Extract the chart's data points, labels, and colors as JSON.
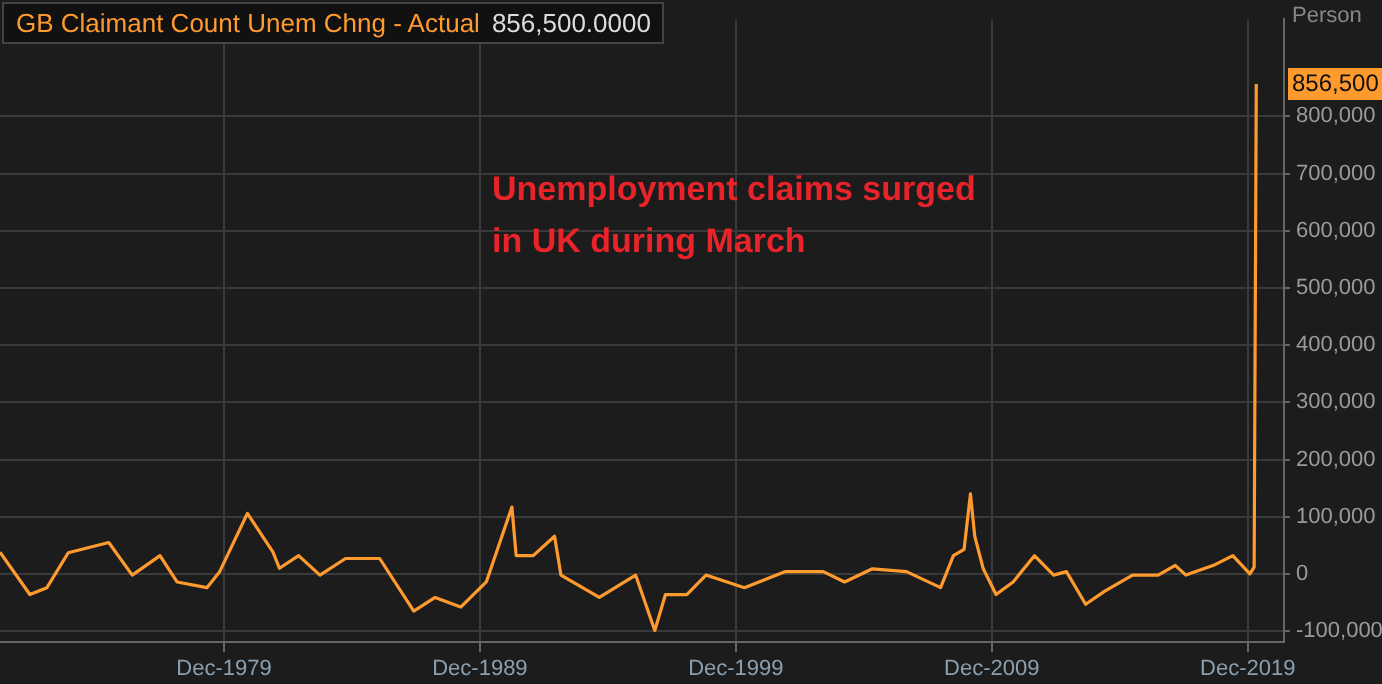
{
  "chart_data": {
    "type": "line",
    "title": "GB Claimant Count Unem Chng - Actual",
    "subtitle": "856,500.0000",
    "ylabel": "Person",
    "annotations": [
      "Unemployment claims surged in UK during March",
      {
        "text": "856,500",
        "x": "2020-04",
        "y": 856500
      }
    ],
    "x": [
      "1971-03",
      "1972-05",
      "1973-01",
      "1973-11",
      "1975-06",
      "1976-05",
      "1977-06",
      "1978-02",
      "1979-04",
      "1979-10",
      "1980-11",
      "1981-11",
      "1982-02",
      "1982-11",
      "1983-09",
      "1984-09",
      "1986-01",
      "1987-05",
      "1988-03",
      "1989-03",
      "1990-03",
      "1991-03",
      "1991-05",
      "1992-01",
      "1992-11",
      "1993-02",
      "1994-08",
      "1996-01",
      "1996-10",
      "1997-03",
      "1998-01",
      "1998-10",
      "2000-04",
      "2001-11",
      "2003-05",
      "2004-03",
      "2005-04",
      "2006-08",
      "2007-12",
      "2008-06",
      "2008-11",
      "2009-02",
      "2009-04",
      "2009-08",
      "2010-02",
      "2010-10",
      "2011-08",
      "2012-05",
      "2012-11",
      "2013-08",
      "2014-05",
      "2015-06",
      "2016-06",
      "2017-02",
      "2017-07",
      "2018-08",
      "2019-05",
      "2020-01",
      "2020-03",
      "2020-04"
    ],
    "series": [
      {
        "color": "#ff9a2e",
        "values": [
          38000,
          -36000,
          -24000,
          37000,
          55000,
          -2000,
          32000,
          -14000,
          -24000,
          4000,
          106000,
          38000,
          10000,
          32000,
          -2000,
          27000,
          27000,
          -65000,
          -41000,
          -58000,
          -14000,
          117000,
          32000,
          32000,
          66000,
          -2000,
          -41000,
          -2000,
          -99000,
          -36000,
          -36000,
          -2000,
          -24000,
          4000,
          4000,
          -14000,
          9000,
          4000,
          -24000,
          32000,
          43000,
          140000,
          66000,
          9000,
          -36000,
          -14000,
          32000,
          -2000,
          4000,
          -53000,
          -30000,
          -2000,
          -2000,
          15000,
          -2000,
          15000,
          32000,
          0,
          12000,
          856500
        ]
      }
    ],
    "xlim": [
      "1971-03",
      "2021-05"
    ],
    "xticks": [
      {
        "value": "1979-12",
        "label": "Dec-1979"
      },
      {
        "value": "1989-12",
        "label": "Dec-1989"
      },
      {
        "value": "1999-12",
        "label": "Dec-1999"
      },
      {
        "value": "2009-12",
        "label": "Dec-2009"
      },
      {
        "value": "2019-12",
        "label": "Dec-2019"
      }
    ],
    "ylim": [
      -119000,
      970000
    ],
    "yticks": [
      {
        "value": -100000,
        "label": "-100,000"
      },
      0,
      {
        "value": 100000,
        "label": "100,000"
      },
      {
        "value": 200000,
        "label": "200,000"
      },
      {
        "value": 300000,
        "label": "300,000"
      },
      {
        "value": 400000,
        "label": "400,000"
      },
      {
        "value": 500000,
        "label": "500,000"
      },
      {
        "value": 600000,
        "label": "600,000"
      },
      {
        "value": 700000,
        "label": "700,000"
      },
      {
        "value": 800000,
        "label": "800,000"
      }
    ],
    "grid": true,
    "legend": false,
    "marker": "none",
    "line_style": "solid"
  }
}
